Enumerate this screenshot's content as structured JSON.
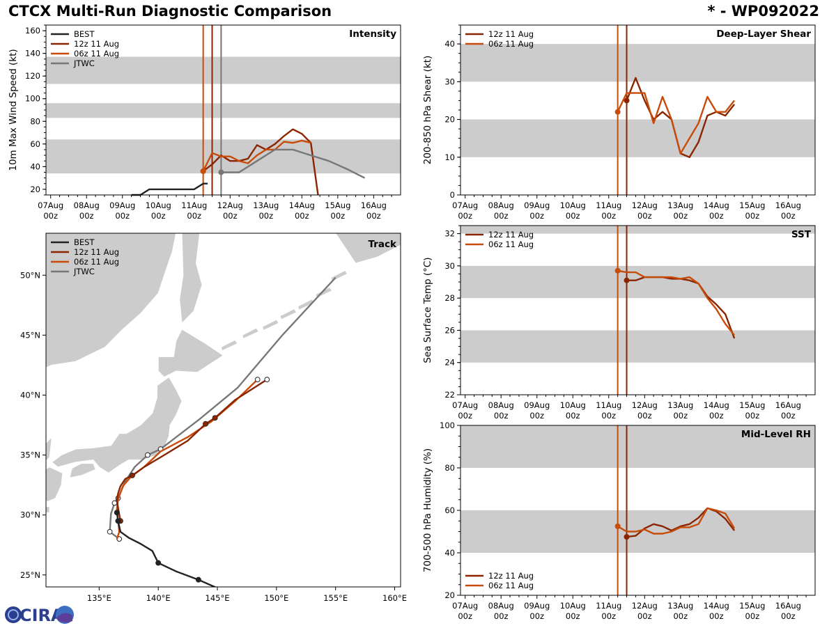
{
  "title": "CTCX Multi-Run Diagnostic Comparison",
  "storm_id": "* - WP092022",
  "logo_text": "CIRA",
  "colors": {
    "BEST": "#222222",
    "12z 11 Aug": "#8b2500",
    "06z 11 Aug": "#c84b0a",
    "JTWC": "#777777",
    "band": "#cccccc"
  },
  "time_ticks": [
    "07Aug",
    "08Aug",
    "09Aug",
    "10Aug",
    "11Aug",
    "12Aug",
    "13Aug",
    "14Aug",
    "15Aug",
    "16Aug"
  ],
  "time_ticks_sub": "00z",
  "init_times": [
    {
      "run": "06z 11 Aug",
      "day": 11.25
    },
    {
      "run": "12z 11 Aug",
      "day": 11.5
    }
  ],
  "chart_data": [
    {
      "id": "intensity",
      "type": "line",
      "title": "Intensity",
      "ylabel": "10m Max Wind Speed (kt)",
      "xlabel": "",
      "xlim": [
        6.87,
        16.75
      ],
      "ylim": [
        15,
        165
      ],
      "yticks": [
        20,
        40,
        60,
        80,
        100,
        120,
        140,
        160
      ],
      "bands": [
        [
          34,
          64
        ],
        [
          83,
          96
        ],
        [
          113,
          137
        ]
      ],
      "vlines": [
        {
          "x": 11.25,
          "color": "06z 11 Aug"
        },
        {
          "x": 11.5,
          "color": "12z 11 Aug"
        },
        {
          "x": 11.75,
          "color": "JTWC"
        }
      ],
      "legend": [
        "BEST",
        "12z 11 Aug",
        "06z 11 Aug",
        "JTWC"
      ],
      "series": [
        {
          "name": "BEST",
          "x": [
            9.25,
            9.5,
            9.75,
            10.0,
            10.25,
            10.5,
            10.75,
            11.0,
            11.25,
            11.375
          ],
          "y": [
            15,
            15,
            20,
            20,
            20,
            20,
            20,
            20,
            25,
            25
          ]
        },
        {
          "name": "12z 11 Aug",
          "x": [
            11.25,
            11.5,
            11.75,
            12.0,
            12.25,
            12.5,
            12.75,
            13.0,
            13.25,
            13.5,
            13.75,
            14.0,
            14.25,
            14.45
          ],
          "y": [
            36,
            42,
            50,
            45,
            45,
            47,
            59,
            55,
            60,
            67,
            73,
            69,
            61,
            15
          ],
          "marker_first": true
        },
        {
          "name": "06z 11 Aug",
          "x": [
            11.25,
            11.5,
            11.75,
            12.0,
            12.25,
            12.5,
            12.75,
            13.0,
            13.25,
            13.5,
            13.75,
            14.0,
            14.25
          ],
          "y": [
            36,
            52,
            49,
            49,
            45,
            43,
            50,
            55,
            55,
            62,
            61,
            63,
            61
          ],
          "marker_first": true
        },
        {
          "name": "JTWC",
          "x": [
            11.75,
            12.25,
            12.75,
            13.25,
            13.75,
            14.25,
            14.75,
            15.25,
            15.75
          ],
          "y": [
            35,
            35,
            45,
            55,
            55,
            50,
            45,
            38,
            30
          ],
          "marker_first": true
        }
      ]
    },
    {
      "id": "shear",
      "type": "line",
      "title": "Deep-Layer Shear",
      "ylabel": "200-850 hPa Shear (kt)",
      "xlabel": "",
      "xlim": [
        6.87,
        16.75
      ],
      "ylim": [
        0,
        45
      ],
      "yticks": [
        0,
        10,
        20,
        30,
        40
      ],
      "bands": [
        [
          10,
          20
        ],
        [
          30,
          40
        ]
      ],
      "vlines": [
        {
          "x": 11.25,
          "color": "06z 11 Aug"
        },
        {
          "x": 11.5,
          "color": "12z 11 Aug"
        }
      ],
      "legend": [
        "12z 11 Aug",
        "06z 11 Aug"
      ],
      "series": [
        {
          "name": "12z 11 Aug",
          "x": [
            11.5,
            11.75,
            12.0,
            12.25,
            12.5,
            12.75,
            13.0,
            13.25,
            13.5,
            13.75,
            14.0,
            14.25,
            14.5
          ],
          "y": [
            25,
            31,
            25,
            20,
            22,
            20,
            11,
            10,
            14,
            21,
            22,
            21,
            24
          ],
          "marker_first": true
        },
        {
          "name": "06z 11 Aug",
          "x": [
            11.25,
            11.5,
            11.75,
            12.0,
            12.25,
            12.5,
            12.75,
            13.0,
            13.5,
            13.75,
            14.0,
            14.25,
            14.5
          ],
          "y": [
            22,
            27,
            27,
            27,
            19,
            26,
            20,
            11,
            19,
            26,
            22,
            22,
            25
          ],
          "marker_first": true
        }
      ]
    },
    {
      "id": "sst",
      "type": "line",
      "title": "SST",
      "ylabel": "Sea Surface Temp (°C)",
      "xlabel": "",
      "xlim": [
        6.87,
        16.75
      ],
      "ylim": [
        22,
        32.5
      ],
      "yticks": [
        22,
        24,
        26,
        28,
        30,
        32
      ],
      "bands": [
        [
          24,
          26
        ],
        [
          28,
          30
        ],
        [
          32,
          33
        ]
      ],
      "vlines": [
        {
          "x": 11.25,
          "color": "06z 11 Aug"
        },
        {
          "x": 11.5,
          "color": "12z 11 Aug"
        }
      ],
      "legend": [
        "12z 11 Aug",
        "06z 11 Aug"
      ],
      "series": [
        {
          "name": "12z 11 Aug",
          "x": [
            11.5,
            11.75,
            12.0,
            12.25,
            12.5,
            12.75,
            13.0,
            13.25,
            13.5,
            13.75,
            14.0,
            14.25,
            14.5
          ],
          "y": [
            29.1,
            29.1,
            29.3,
            29.3,
            29.3,
            29.2,
            29.2,
            29.1,
            28.9,
            28.1,
            27.6,
            27.0,
            25.5
          ],
          "marker_first": true
        },
        {
          "name": "06z 11 Aug",
          "x": [
            11.25,
            11.5,
            11.75,
            12.0,
            12.25,
            12.5,
            12.75,
            13.0,
            13.25,
            13.5,
            13.75,
            14.0,
            14.25,
            14.5
          ],
          "y": [
            29.7,
            29.6,
            29.6,
            29.3,
            29.3,
            29.3,
            29.3,
            29.2,
            29.3,
            28.9,
            28.0,
            27.3,
            26.4,
            25.7
          ],
          "marker_first": true
        }
      ]
    },
    {
      "id": "rh",
      "type": "line",
      "title": "Mid-Level RH",
      "ylabel": "700-500 hPa Humidity (%)",
      "xlabel": "",
      "xlim": [
        6.87,
        16.75
      ],
      "ylim": [
        20,
        100
      ],
      "yticks": [
        20,
        40,
        60,
        80,
        100
      ],
      "bands": [
        [
          40,
          60
        ],
        [
          80,
          100
        ]
      ],
      "vlines": [
        {
          "x": 11.25,
          "color": "06z 11 Aug"
        },
        {
          "x": 11.5,
          "color": "12z 11 Aug"
        }
      ],
      "legend": [
        "12z 11 Aug",
        "06z 11 Aug"
      ],
      "series": [
        {
          "name": "12z 11 Aug",
          "x": [
            11.5,
            11.75,
            12.0,
            12.25,
            12.5,
            12.75,
            13.0,
            13.25,
            13.5,
            13.75,
            14.0,
            14.25,
            14.5
          ],
          "y": [
            47.5,
            48,
            51.5,
            53.5,
            52.5,
            50.5,
            52.5,
            53.5,
            56.5,
            61,
            59.5,
            56,
            50.5
          ],
          "marker_first": true
        },
        {
          "name": "06z 11 Aug",
          "x": [
            11.25,
            11.5,
            11.75,
            12.0,
            12.25,
            12.5,
            12.75,
            13.0,
            13.25,
            13.5,
            13.75,
            14.0,
            14.25,
            14.5
          ],
          "y": [
            52.5,
            50,
            50,
            51,
            49,
            49,
            50,
            52,
            52,
            53.5,
            61,
            60,
            58.5,
            51.5
          ],
          "marker_first": true
        }
      ]
    },
    {
      "id": "track",
      "type": "scatter",
      "title": "Track",
      "xlabel": "",
      "ylabel": "",
      "xlim": [
        130.5,
        160.5
      ],
      "ylim": [
        24,
        53.5
      ],
      "xticks": [
        135,
        140,
        145,
        150,
        155,
        160
      ],
      "xtick_labels": [
        "135°E",
        "140°E",
        "145°E",
        "150°E",
        "155°E",
        "160°E"
      ],
      "yticks": [
        25,
        30,
        35,
        40,
        45,
        50
      ],
      "ytick_labels": [
        "25°N",
        "30°N",
        "35°N",
        "40°N",
        "45°N",
        "50°N"
      ],
      "legend": [
        "BEST",
        "12z 11 Aug",
        "06z 11 Aug",
        "JTWC"
      ],
      "series": [
        {
          "name": "BEST",
          "lon": [
            145.0,
            143.4,
            141.5,
            140.0,
            139.5,
            138.5,
            137.5,
            136.8,
            136.6,
            136.5
          ],
          "lat": [
            23.9,
            24.6,
            25.3,
            26.0,
            27.0,
            27.6,
            28.1,
            28.6,
            29.5,
            30.2
          ],
          "dots_filled": [
            1,
            3,
            8,
            9
          ]
        },
        {
          "name": "12z 11 Aug",
          "lon": [
            136.8,
            136.6,
            136.5,
            136.6,
            136.8,
            137.2,
            137.8,
            138.8,
            140.5,
            142.5,
            144.0,
            144.8,
            146.5,
            149.2
          ],
          "lat": [
            29.5,
            30.6,
            31.2,
            31.8,
            32.4,
            33.0,
            33.3,
            34.0,
            35.0,
            36.2,
            37.6,
            38.1,
            39.6,
            41.3
          ],
          "dots_filled": [
            0,
            6,
            10,
            11
          ],
          "dots_open": [
            13
          ]
        },
        {
          "name": "06z 11 Aug",
          "lon": [
            136.5,
            136.7,
            136.6,
            136.5,
            136.6,
            137.0,
            137.7,
            138.8,
            140.2,
            142.5,
            144.5,
            146.5,
            148.4
          ],
          "lat": [
            28.0,
            28.6,
            29.5,
            30.5,
            31.3,
            32.4,
            33.2,
            34.0,
            35.3,
            36.5,
            37.8,
            39.5,
            41.3
          ],
          "dots_filled": [],
          "dots_open": [
            12
          ]
        },
        {
          "name": "JTWC",
          "lon": [
            136.7,
            135.9,
            136.0,
            136.3,
            136.6,
            137.2,
            138.0,
            139.1,
            140.2,
            143.5,
            146.7,
            150.5,
            155.0
          ],
          "lat": [
            28.0,
            28.6,
            30.1,
            31.0,
            31.4,
            32.8,
            34.0,
            35.0,
            35.5,
            38.0,
            40.6,
            45.0,
            49.8
          ],
          "dots_open": [
            0,
            1,
            3,
            4,
            7,
            8
          ]
        }
      ]
    }
  ]
}
